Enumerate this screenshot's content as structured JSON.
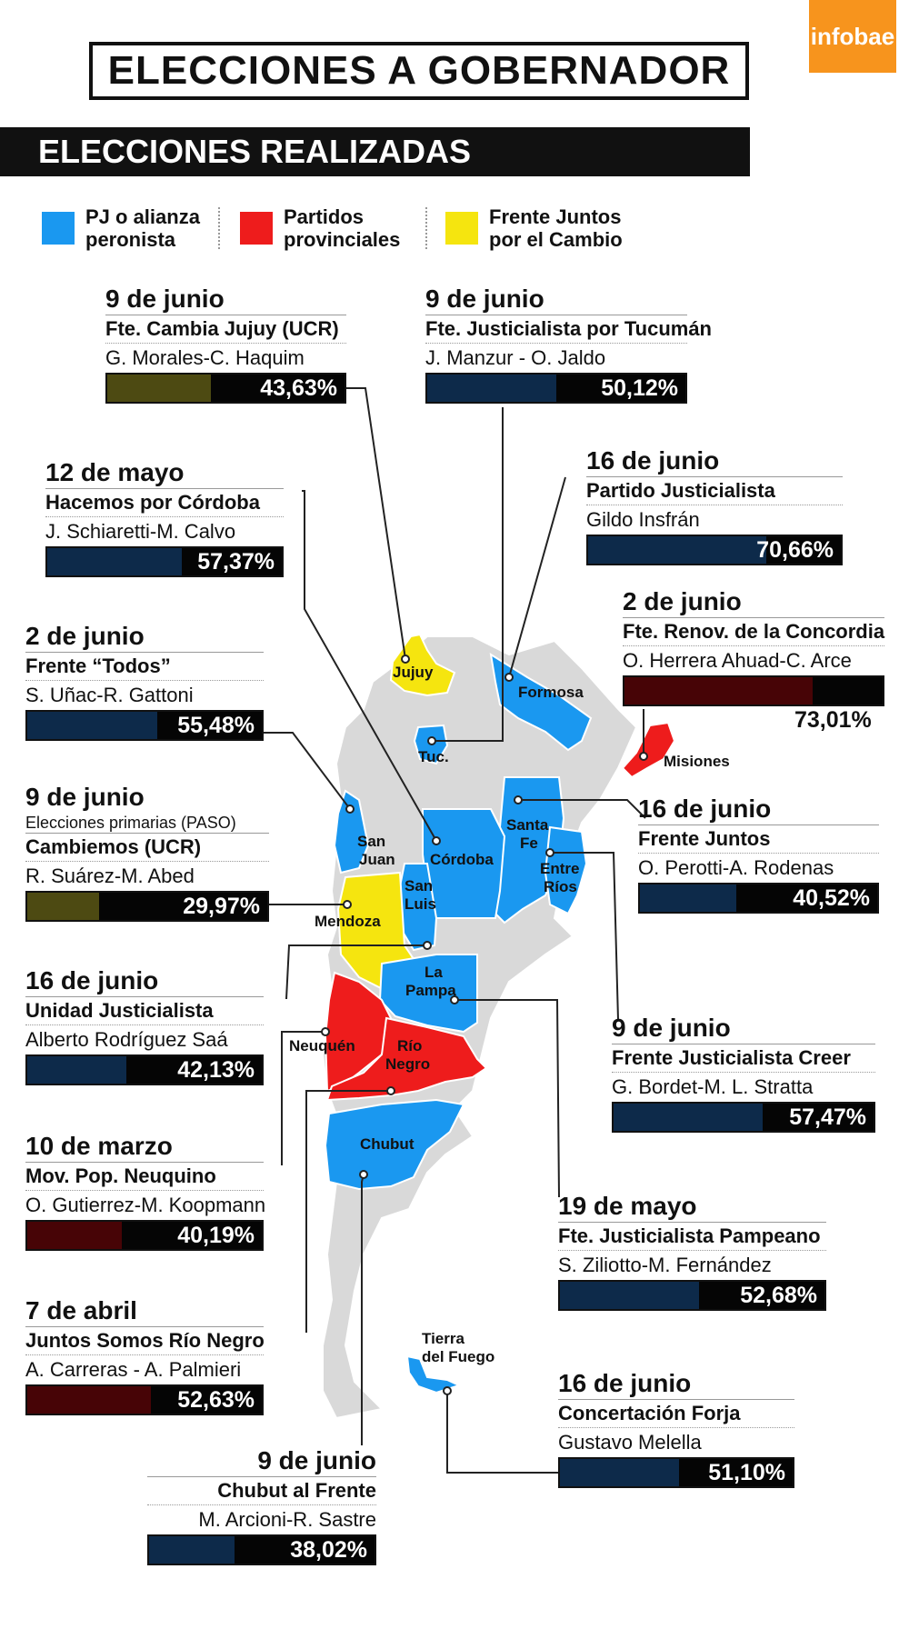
{
  "brand": "infobae",
  "title": "ELECCIONES A GOBERNADOR",
  "subtitle": "ELECCIONES REALIZADAS",
  "legend": [
    {
      "label_1": "PJ o alianza",
      "label_2": "peronista",
      "color": "#1a98f0"
    },
    {
      "label_1": "Partidos",
      "label_2": "provinciales",
      "color": "#ee1c1c"
    },
    {
      "label_1": "Frente Juntos",
      "label_2": "por el Cambio",
      "color": "#f5e50f"
    }
  ],
  "colors": {
    "pj": "#1a98f0",
    "provincial": "#ee1c1c",
    "cambio": "#f5e50f",
    "no_election": "#d9d9d9",
    "bar_pj": "#0d2a4a",
    "bar_provincial": "#470406",
    "bar_cambio": "#4d4a12"
  },
  "provinces": {
    "jujuy": "Jujuy",
    "formosa": "Formosa",
    "tucuman": "Tuc.",
    "misiones": "Misiones",
    "santa_fe_1": "Santa",
    "santa_fe_2": "Fe",
    "san_juan_1": "San",
    "san_juan_2": "Juan",
    "cordoba": "Córdoba",
    "entre_rios_1": "Entre",
    "entre_rios_2": "Ríos",
    "san_luis_1": "San",
    "san_luis_2": "Luis",
    "mendoza": "Mendoza",
    "la_pampa_1": "La",
    "la_pampa_2": "Pampa",
    "neuquen": "Neuquén",
    "rio_negro_1": "Río",
    "rio_negro_2": "Negro",
    "chubut": "Chubut",
    "tdf_1": "Tierra",
    "tdf_2": "del Fuego"
  },
  "chart_data": {
    "type": "bar",
    "title": "ELECCIONES A GOBERNADOR",
    "subtitle": "ELECCIONES REALIZADAS",
    "unit": "%",
    "series": [
      {
        "name": "PJ o alianza peronista",
        "color": "#1a98f0"
      },
      {
        "name": "Partidos provinciales",
        "color": "#ee1c1c"
      },
      {
        "name": "Frente Juntos por el Cambio",
        "color": "#f5e50f"
      }
    ],
    "elections": [
      {
        "province": "Jujuy",
        "date": "9 de junio",
        "party": "Fte. Cambia Jujuy (UCR)",
        "candidates": "G. Morales-C. Haquim",
        "value": 43.63,
        "label": "43,63%",
        "bloc": "cambio"
      },
      {
        "province": "Tucumán",
        "date": "9 de junio",
        "party": "Fte. Justicialista por Tucumán",
        "candidates": "J. Manzur - O. Jaldo",
        "value": 50.12,
        "label": "50,12%",
        "bloc": "pj"
      },
      {
        "province": "Córdoba",
        "date": "12 de mayo",
        "party": "Hacemos por Córdoba",
        "candidates": "J. Schiaretti-M. Calvo",
        "value": 57.37,
        "label": "57,37%",
        "bloc": "pj"
      },
      {
        "province": "Formosa",
        "date": "16 de junio",
        "party": "Partido Justicialista",
        "candidates": "Gildo Insfrán",
        "value": 70.66,
        "label": "70,66%",
        "bloc": "pj"
      },
      {
        "province": "Misiones",
        "date": "2 de junio",
        "party": "Fte. Renov. de la Concordia",
        "candidates": "O. Herrera Ahuad-C. Arce",
        "value": 73.01,
        "label": "73,01%",
        "bloc": "provincial"
      },
      {
        "province": "San Juan",
        "date": "2 de junio",
        "party": "Frente “Todos”",
        "candidates": "S. Uñac-R. Gattoni",
        "value": 55.48,
        "label": "55,48%",
        "bloc": "pj"
      },
      {
        "province": "Mendoza",
        "date": "9 de junio",
        "note": "Elecciones primarias (PASO)",
        "party": "Cambiemos (UCR)",
        "candidates": "R. Suárez-M. Abed",
        "value": 29.97,
        "label": "29,97%",
        "bloc": "cambio"
      },
      {
        "province": "Santa Fe",
        "date": "16 de junio",
        "party": "Frente Juntos",
        "candidates": "O. Perotti-A. Rodenas",
        "value": 40.52,
        "label": "40,52%",
        "bloc": "pj"
      },
      {
        "province": "San Luis",
        "date": "16 de junio",
        "party": "Unidad Justicialista",
        "candidates": "Alberto Rodríguez Saá",
        "value": 42.13,
        "label": "42,13%",
        "bloc": "pj"
      },
      {
        "province": "Entre Ríos",
        "date": "9 de junio",
        "party": "Frente Justicialista Creer",
        "candidates": "G. Bordet-M. L. Stratta",
        "value": 57.47,
        "label": "57,47%",
        "bloc": "pj"
      },
      {
        "province": "Neuquén",
        "date": "10 de marzo",
        "party": "Mov. Pop. Neuquino",
        "candidates": "O. Gutierrez-M. Koopmann",
        "value": 40.19,
        "label": "40,19%",
        "bloc": "provincial"
      },
      {
        "province": "La Pampa",
        "date": "19 de mayo",
        "party": "Fte. Justicialista Pampeano",
        "candidates": "S. Ziliotto-M. Fernández",
        "value": 52.68,
        "label": "52,68%",
        "bloc": "pj"
      },
      {
        "province": "Río Negro",
        "date": "7 de abril",
        "party": "Juntos Somos Río Negro",
        "candidates": "A. Carreras - A. Palmieri",
        "value": 52.63,
        "label": "52,63%",
        "bloc": "provincial"
      },
      {
        "province": "Tierra del Fuego",
        "date": "16 de junio",
        "party": "Concertación Forja",
        "candidates": "Gustavo Melella",
        "value": 51.1,
        "label": "51,10%",
        "bloc": "pj"
      },
      {
        "province": "Chubut",
        "date": "9 de junio",
        "party": "Chubut al Frente",
        "candidates": "M. Arcioni-R. Sastre",
        "value": 38.02,
        "label": "38,02%",
        "bloc": "pj"
      }
    ]
  }
}
